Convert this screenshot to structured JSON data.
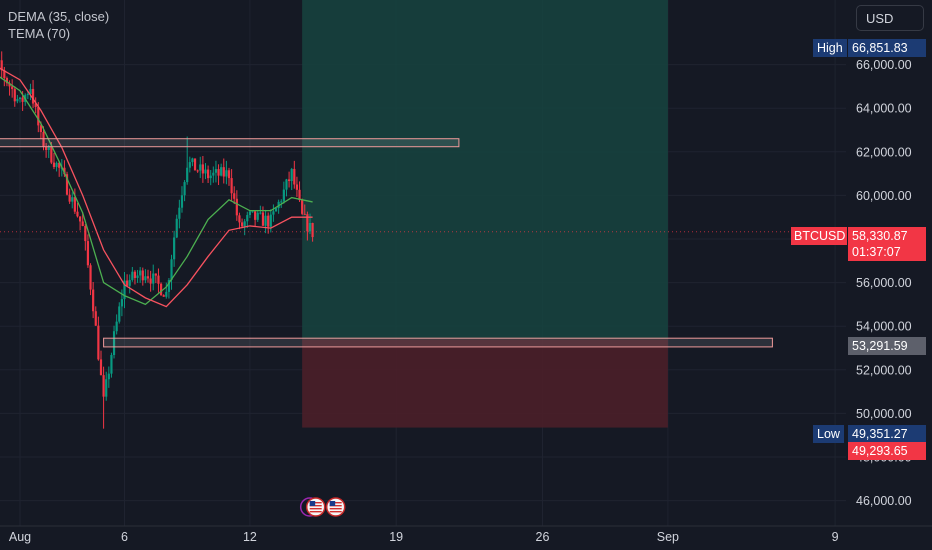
{
  "legend": {
    "dema": "DEMA (35, close)",
    "tema": "TEMA (70)"
  },
  "currency_button": "USD",
  "price_tags": {
    "high_label": "High",
    "high_value": "66,851.83",
    "symbol": "BTCUSD",
    "last_price": "58,330.87",
    "countdown": "01:37:07",
    "level_price": "53,291.59",
    "low_label": "Low",
    "low_value": "49,351.27",
    "stop_price": "49,293.65"
  },
  "event_badge_icons": [
    "flag-us-icon",
    "flag-us-icon"
  ],
  "colors": {
    "background": "#151924",
    "grid": "#1f2330",
    "candle_up": "#089981",
    "candle_down": "#f23645",
    "dema_line": "#4caf50",
    "tema_line": "#f7525f",
    "profit_zone": "#16443f",
    "loss_zone": "#4a1f29",
    "tag_blue": "#1c3b73",
    "tag_red": "#f23645",
    "tag_gray": "#5d606b"
  },
  "chart_data": {
    "type": "candlestick",
    "symbol": "BTCUSD",
    "interval": "1h",
    "x_ticks": [
      "Aug",
      "6",
      "12",
      "19",
      "26",
      "Sep",
      "9"
    ],
    "y_ticks": [
      "46,000.00",
      "48,000.00",
      "50,000.00",
      "52,000.00",
      "54,000.00",
      "56,000.00",
      "58,000.00",
      "60,000.00",
      "62,000.00",
      "64,000.00",
      "66,000.00"
    ],
    "ylim": [
      45200,
      67800
    ],
    "xlim_days": [
      "Jul 30",
      "Sep 10"
    ],
    "grid": true,
    "series_checkpoints": [
      {
        "date": "Jul 30",
        "price": 66300
      },
      {
        "date": "Jul 31",
        "price": 65900
      },
      {
        "date": "Aug 1",
        "price": 64200
      },
      {
        "date": "Aug 1 12h",
        "price": 65000
      },
      {
        "date": "Aug 2",
        "price": 62600
      },
      {
        "date": "Aug 3",
        "price": 61000
      },
      {
        "date": "Aug 4",
        "price": 58500
      },
      {
        "date": "Aug 4 12h",
        "price": 55000
      },
      {
        "date": "Aug 5",
        "price": 50500
      },
      {
        "date": "Aug 5 12h",
        "price": 53500
      },
      {
        "date": "Aug 6",
        "price": 56000
      },
      {
        "date": "Aug 7",
        "price": 56500
      },
      {
        "date": "Aug 8",
        "price": 55500
      },
      {
        "date": "Aug 8 12h",
        "price": 59000
      },
      {
        "date": "Aug 9",
        "price": 61500
      },
      {
        "date": "Aug 10",
        "price": 60900
      },
      {
        "date": "Aug 11",
        "price": 61000
      },
      {
        "date": "Aug 11 12h",
        "price": 58500
      },
      {
        "date": "Aug 12",
        "price": 59000
      },
      {
        "date": "Aug 13",
        "price": 58800
      },
      {
        "date": "Aug 14",
        "price": 61000
      },
      {
        "date": "Aug 14 12h",
        "price": 59000
      },
      {
        "date": "Aug 15",
        "price": 58300
      }
    ],
    "wick_extremes": {
      "high": {
        "date": "Aug 9",
        "price": 62700
      },
      "low": {
        "date": "Aug 5",
        "price": 49300
      }
    },
    "indicators": {
      "DEMA (35, close)": [
        {
          "date": "Jul 30",
          "price": 66100
        },
        {
          "date": "Aug 1",
          "price": 64800
        },
        {
          "date": "Aug 2",
          "price": 63300
        },
        {
          "date": "Aug 3",
          "price": 61300
        },
        {
          "date": "Aug 4",
          "price": 59200
        },
        {
          "date": "Aug 5",
          "price": 56000
        },
        {
          "date": "Aug 6",
          "price": 55400
        },
        {
          "date": "Aug 7",
          "price": 55000
        },
        {
          "date": "Aug 8",
          "price": 55800
        },
        {
          "date": "Aug 9",
          "price": 57200
        },
        {
          "date": "Aug 10",
          "price": 58900
        },
        {
          "date": "Aug 11",
          "price": 59800
        },
        {
          "date": "Aug 12",
          "price": 59300
        },
        {
          "date": "Aug 13",
          "price": 59300
        },
        {
          "date": "Aug 14",
          "price": 59900
        },
        {
          "date": "Aug 15",
          "price": 59700
        }
      ],
      "TEMA (70)": [
        {
          "date": "Jul 30",
          "price": 66400
        },
        {
          "date": "Aug 1",
          "price": 65300
        },
        {
          "date": "Aug 2",
          "price": 63900
        },
        {
          "date": "Aug 3",
          "price": 62200
        },
        {
          "date": "Aug 4",
          "price": 60000
        },
        {
          "date": "Aug 5",
          "price": 57500
        },
        {
          "date": "Aug 6",
          "price": 55900
        },
        {
          "date": "Aug 7",
          "price": 55300
        },
        {
          "date": "Aug 8",
          "price": 54900
        },
        {
          "date": "Aug 9",
          "price": 55900
        },
        {
          "date": "Aug 10",
          "price": 57200
        },
        {
          "date": "Aug 11",
          "price": 58400
        },
        {
          "date": "Aug 12",
          "price": 58600
        },
        {
          "date": "Aug 13",
          "price": 58500
        },
        {
          "date": "Aug 14",
          "price": 59000
        },
        {
          "date": "Aug 15",
          "price": 59000
        }
      ]
    },
    "last_price": 58330.87,
    "price_line": 53291.59,
    "high": 66851.83,
    "low": 49351.27,
    "stop": 49293.65,
    "position": {
      "entry": 53400,
      "target": 67800,
      "stop": 49350,
      "start": "Aug 14 12h",
      "end": "Sep 1"
    },
    "zones": [
      {
        "from": "Jul 31",
        "to": "Aug 22",
        "low": 62300,
        "high": 62600
      },
      {
        "from": "Aug 5",
        "to": "Sep 6",
        "low": 53050,
        "high": 53450
      }
    ]
  }
}
